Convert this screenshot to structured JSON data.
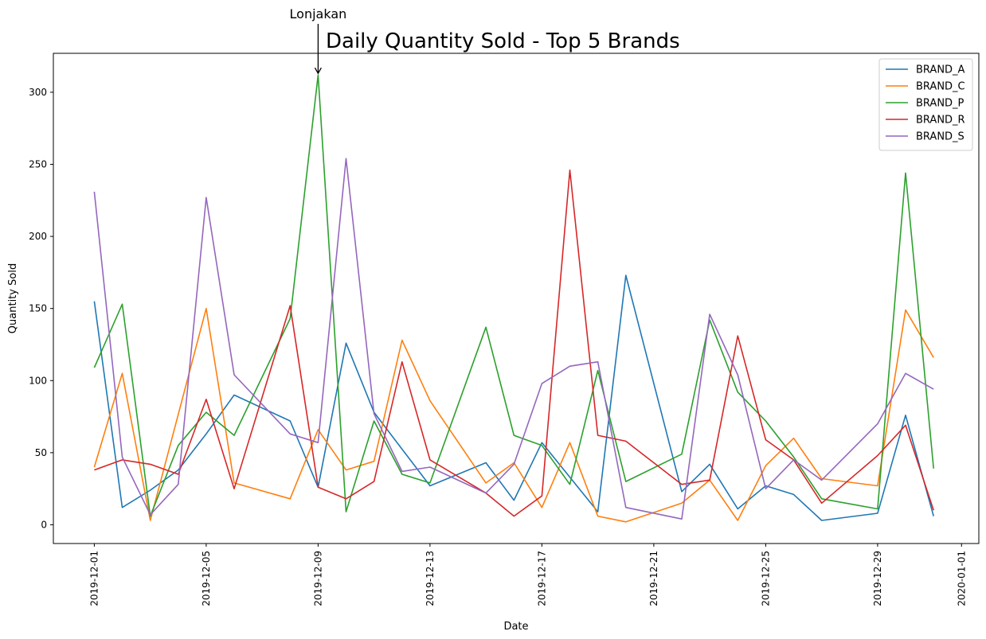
{
  "chart_data": {
    "type": "line",
    "title": "Daily Quantity Sold - Top 5 Brands",
    "xlabel": "Date",
    "ylabel": "Quantity Sold",
    "xlim": [
      "2019-11-28",
      "2020-01-01"
    ],
    "ylim": [
      -13,
      327
    ],
    "x_ticks": [
      "2019-12-01",
      "2019-12-05",
      "2019-12-09",
      "2019-12-13",
      "2019-12-17",
      "2019-12-21",
      "2019-12-25",
      "2019-12-29",
      "2020-01-01"
    ],
    "y_ticks": [
      0,
      50,
      100,
      150,
      200,
      250,
      300
    ],
    "legend_position": "top-right",
    "grid": false,
    "annotation": {
      "text": "Lonjakan",
      "x": "2019-12-09",
      "y": 312
    },
    "series": [
      {
        "name": "BRAND_A",
        "color": "#1f77b4",
        "points": [
          [
            "2019-12-01",
            155
          ],
          [
            "2019-12-02",
            12
          ],
          [
            "2019-12-03",
            24
          ],
          [
            "2019-12-04",
            38
          ],
          [
            "2019-12-05",
            63
          ],
          [
            "2019-12-06",
            90
          ],
          [
            "2019-12-08",
            72
          ],
          [
            "2019-12-09",
            26
          ],
          [
            "2019-12-10",
            126
          ],
          [
            "2019-12-11",
            78
          ],
          [
            "2019-12-13",
            27
          ],
          [
            "2019-12-15",
            43
          ],
          [
            "2019-12-16",
            17
          ],
          [
            "2019-12-17",
            57
          ],
          [
            "2019-12-19",
            9
          ],
          [
            "2019-12-20",
            173
          ],
          [
            "2019-12-22",
            23
          ],
          [
            "2019-12-23",
            42
          ],
          [
            "2019-12-24",
            11
          ],
          [
            "2019-12-25",
            27
          ],
          [
            "2019-12-26",
            21
          ],
          [
            "2019-12-27",
            3
          ],
          [
            "2019-12-29",
            8
          ],
          [
            "2019-12-30",
            76
          ],
          [
            "2019-12-31",
            6
          ]
        ]
      },
      {
        "name": "BRAND_C",
        "color": "#ff7f0e",
        "points": [
          [
            "2019-12-01",
            40
          ],
          [
            "2019-12-02",
            105
          ],
          [
            "2019-12-03",
            3
          ],
          [
            "2019-12-05",
            150
          ],
          [
            "2019-12-06",
            29
          ],
          [
            "2019-12-08",
            18
          ],
          [
            "2019-12-09",
            66
          ],
          [
            "2019-12-10",
            38
          ],
          [
            "2019-12-11",
            44
          ],
          [
            "2019-12-12",
            128
          ],
          [
            "2019-12-13",
            86
          ],
          [
            "2019-12-15",
            29
          ],
          [
            "2019-12-16",
            43
          ],
          [
            "2019-12-17",
            12
          ],
          [
            "2019-12-18",
            57
          ],
          [
            "2019-12-19",
            6
          ],
          [
            "2019-12-20",
            2
          ],
          [
            "2019-12-22",
            15
          ],
          [
            "2019-12-23",
            31
          ],
          [
            "2019-12-24",
            3
          ],
          [
            "2019-12-25",
            41
          ],
          [
            "2019-12-26",
            60
          ],
          [
            "2019-12-27",
            32
          ],
          [
            "2019-12-29",
            27
          ],
          [
            "2019-12-30",
            149
          ],
          [
            "2019-12-31",
            116
          ]
        ]
      },
      {
        "name": "BRAND_P",
        "color": "#2ca02c",
        "points": [
          [
            "2019-12-01",
            109
          ],
          [
            "2019-12-02",
            153
          ],
          [
            "2019-12-03",
            6
          ],
          [
            "2019-12-04",
            55
          ],
          [
            "2019-12-05",
            78
          ],
          [
            "2019-12-06",
            62
          ],
          [
            "2019-12-08",
            143
          ],
          [
            "2019-12-09",
            312
          ],
          [
            "2019-12-10",
            9
          ],
          [
            "2019-12-11",
            72
          ],
          [
            "2019-12-12",
            35
          ],
          [
            "2019-12-13",
            29
          ],
          [
            "2019-12-15",
            137
          ],
          [
            "2019-12-16",
            62
          ],
          [
            "2019-12-17",
            55
          ],
          [
            "2019-12-18",
            28
          ],
          [
            "2019-12-19",
            107
          ],
          [
            "2019-12-20",
            30
          ],
          [
            "2019-12-22",
            49
          ],
          [
            "2019-12-23",
            142
          ],
          [
            "2019-12-24",
            92
          ],
          [
            "2019-12-25",
            72
          ],
          [
            "2019-12-26",
            47
          ],
          [
            "2019-12-27",
            18
          ],
          [
            "2019-12-29",
            11
          ],
          [
            "2019-12-30",
            244
          ],
          [
            "2019-12-31",
            39
          ]
        ]
      },
      {
        "name": "BRAND_R",
        "color": "#d62728",
        "points": [
          [
            "2019-12-01",
            38
          ],
          [
            "2019-12-02",
            45
          ],
          [
            "2019-12-03",
            42
          ],
          [
            "2019-12-04",
            35
          ],
          [
            "2019-12-05",
            87
          ],
          [
            "2019-12-06",
            25
          ],
          [
            "2019-12-08",
            152
          ],
          [
            "2019-12-09",
            26
          ],
          [
            "2019-12-10",
            18
          ],
          [
            "2019-12-11",
            30
          ],
          [
            "2019-12-12",
            113
          ],
          [
            "2019-12-13",
            45
          ],
          [
            "2019-12-15",
            22
          ],
          [
            "2019-12-16",
            6
          ],
          [
            "2019-12-17",
            20
          ],
          [
            "2019-12-18",
            246
          ],
          [
            "2019-12-19",
            62
          ],
          [
            "2019-12-20",
            58
          ],
          [
            "2019-12-22",
            28
          ],
          [
            "2019-12-23",
            31
          ],
          [
            "2019-12-24",
            131
          ],
          [
            "2019-12-25",
            59
          ],
          [
            "2019-12-26",
            45
          ],
          [
            "2019-12-27",
            15
          ],
          [
            "2019-12-29",
            48
          ],
          [
            "2019-12-30",
            69
          ],
          [
            "2019-12-31",
            10
          ]
        ]
      },
      {
        "name": "BRAND_S",
        "color": "#9467bd",
        "points": [
          [
            "2019-12-01",
            231
          ],
          [
            "2019-12-02",
            47
          ],
          [
            "2019-12-03",
            7
          ],
          [
            "2019-12-04",
            28
          ],
          [
            "2019-12-05",
            227
          ],
          [
            "2019-12-06",
            104
          ],
          [
            "2019-12-08",
            63
          ],
          [
            "2019-12-09",
            57
          ],
          [
            "2019-12-10",
            254
          ],
          [
            "2019-12-11",
            77
          ],
          [
            "2019-12-12",
            37
          ],
          [
            "2019-12-13",
            40
          ],
          [
            "2019-12-15",
            22
          ],
          [
            "2019-12-16",
            42
          ],
          [
            "2019-12-17",
            98
          ],
          [
            "2019-12-18",
            110
          ],
          [
            "2019-12-19",
            113
          ],
          [
            "2019-12-20",
            12
          ],
          [
            "2019-12-22",
            4
          ],
          [
            "2019-12-23",
            146
          ],
          [
            "2019-12-24",
            104
          ],
          [
            "2019-12-25",
            25
          ],
          [
            "2019-12-26",
            45
          ],
          [
            "2019-12-27",
            31
          ],
          [
            "2019-12-29",
            70
          ],
          [
            "2019-12-30",
            105
          ],
          [
            "2019-12-31",
            94
          ]
        ]
      }
    ]
  }
}
